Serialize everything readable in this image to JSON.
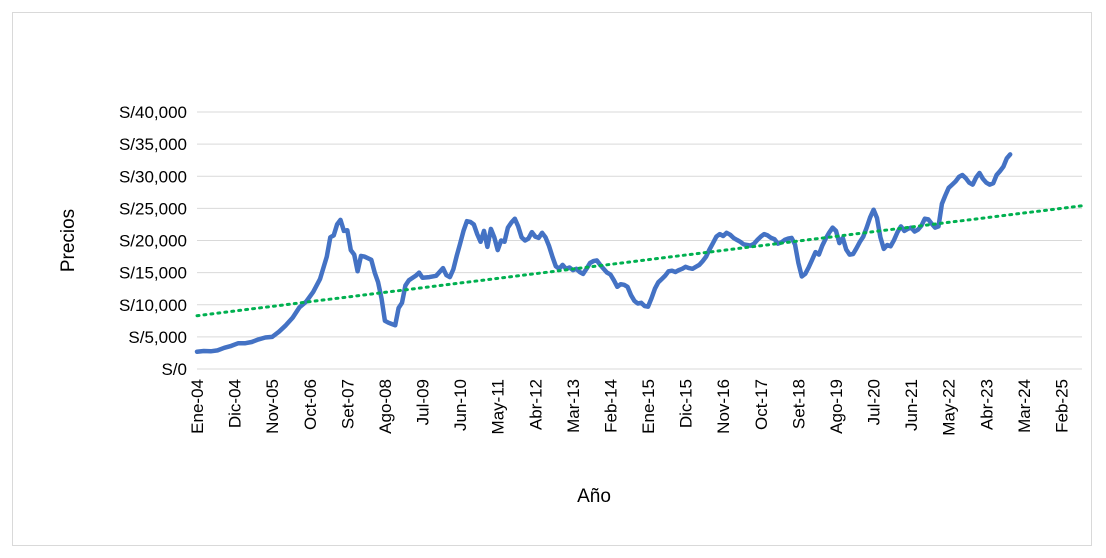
{
  "chart_data": {
    "type": "line",
    "title": "",
    "xlabel": "Año",
    "ylabel": "Precios",
    "ylim": [
      0,
      40000
    ],
    "y_ticks": [
      0,
      5000,
      10000,
      15000,
      20000,
      25000,
      30000,
      35000,
      40000
    ],
    "y_tick_labels": [
      "S/0",
      "S/5,000",
      "S/10,000",
      "S/15,000",
      "S/20,000",
      "S/25,000",
      "S/30,000",
      "S/35,000",
      "S/40,000"
    ],
    "x_tick_labels": [
      "Ene-04",
      "Dic-04",
      "Nov-05",
      "Oct-06",
      "Set-07",
      "Ago-08",
      "Jul-09",
      "Jun-10",
      "May-11",
      "Abr-12",
      "Mar-13",
      "Feb-14",
      "Ene-15",
      "Dic-15",
      "Nov-16",
      "Oct-17",
      "Set-18",
      "Ago-19",
      "Jul-20",
      "Jun-21",
      "May-22",
      "Abr-23",
      "Mar-24",
      "Feb-25"
    ],
    "x_tick_positions_months": [
      0,
      11,
      22,
      33,
      44,
      55,
      66,
      77,
      88,
      99,
      110,
      121,
      132,
      143,
      154,
      165,
      176,
      187,
      198,
      209,
      220,
      231,
      242,
      253
    ],
    "x_range_months": [
      0,
      259
    ],
    "gridlines": "horizontal",
    "legend": "none",
    "series": [
      {
        "kind": "price",
        "color": "#4472C4",
        "points": [
          [
            0,
            2700
          ],
          [
            2,
            2800
          ],
          [
            4,
            2750
          ],
          [
            6,
            2900
          ],
          [
            8,
            3300
          ],
          [
            10,
            3600
          ],
          [
            12,
            4000
          ],
          [
            14,
            4000
          ],
          [
            16,
            4200
          ],
          [
            18,
            4600
          ],
          [
            20,
            4900
          ],
          [
            22,
            5000
          ],
          [
            24,
            5800
          ],
          [
            26,
            6800
          ],
          [
            28,
            8000
          ],
          [
            30,
            9600
          ],
          [
            32,
            10500
          ],
          [
            34,
            12000
          ],
          [
            36,
            14000
          ],
          [
            38,
            17500
          ],
          [
            39,
            20500
          ],
          [
            40,
            20800
          ],
          [
            41,
            22500
          ],
          [
            42,
            23200
          ],
          [
            43,
            21500
          ],
          [
            44,
            21600
          ],
          [
            45,
            18500
          ],
          [
            46,
            17800
          ],
          [
            47,
            15200
          ],
          [
            48,
            17600
          ],
          [
            49,
            17500
          ],
          [
            51,
            17000
          ],
          [
            52,
            15000
          ],
          [
            53,
            13500
          ],
          [
            54,
            11000
          ],
          [
            55,
            7500
          ],
          [
            56,
            7200
          ],
          [
            57,
            7000
          ],
          [
            58,
            6800
          ],
          [
            59,
            9500
          ],
          [
            60,
            10300
          ],
          [
            61,
            13000
          ],
          [
            62,
            13800
          ],
          [
            64,
            14500
          ],
          [
            65,
            15000
          ],
          [
            66,
            14200
          ],
          [
            68,
            14300
          ],
          [
            70,
            14500
          ],
          [
            72,
            15700
          ],
          [
            73,
            14600
          ],
          [
            74,
            14300
          ],
          [
            75,
            15500
          ],
          [
            76,
            17600
          ],
          [
            77,
            19500
          ],
          [
            78,
            21500
          ],
          [
            79,
            23000
          ],
          [
            80,
            22900
          ],
          [
            81,
            22500
          ],
          [
            82,
            21000
          ],
          [
            83,
            19800
          ],
          [
            84,
            21500
          ],
          [
            85,
            19000
          ],
          [
            86,
            21800
          ],
          [
            87,
            20500
          ],
          [
            88,
            18500
          ],
          [
            89,
            20000
          ],
          [
            90,
            19800
          ],
          [
            91,
            22000
          ],
          [
            92,
            22800
          ],
          [
            93,
            23400
          ],
          [
            94,
            22200
          ],
          [
            95,
            20500
          ],
          [
            96,
            20000
          ],
          [
            97,
            20300
          ],
          [
            98,
            21300
          ],
          [
            99,
            20600
          ],
          [
            100,
            20400
          ],
          [
            101,
            21200
          ],
          [
            102,
            20500
          ],
          [
            103,
            19200
          ],
          [
            104,
            17500
          ],
          [
            105,
            16000
          ],
          [
            106,
            15600
          ],
          [
            107,
            16200
          ],
          [
            108,
            15600
          ],
          [
            109,
            15800
          ],
          [
            110,
            15400
          ],
          [
            111,
            15600
          ],
          [
            112,
            15100
          ],
          [
            113,
            14800
          ],
          [
            114,
            15600
          ],
          [
            115,
            16500
          ],
          [
            116,
            16800
          ],
          [
            117,
            16900
          ],
          [
            118,
            16200
          ],
          [
            119,
            15600
          ],
          [
            120,
            15000
          ],
          [
            121,
            14700
          ],
          [
            122,
            13800
          ],
          [
            123,
            12800
          ],
          [
            124,
            13200
          ],
          [
            125,
            13100
          ],
          [
            126,
            12800
          ],
          [
            127,
            11500
          ],
          [
            128,
            10600
          ],
          [
            129,
            10200
          ],
          [
            130,
            10300
          ],
          [
            131,
            9800
          ],
          [
            132,
            9700
          ],
          [
            133,
            11000
          ],
          [
            134,
            12500
          ],
          [
            135,
            13500
          ],
          [
            136,
            14000
          ],
          [
            137,
            14500
          ],
          [
            138,
            15200
          ],
          [
            139,
            15300
          ],
          [
            140,
            15100
          ],
          [
            141,
            15400
          ],
          [
            142,
            15600
          ],
          [
            143,
            15900
          ],
          [
            144,
            15700
          ],
          [
            145,
            15600
          ],
          [
            146,
            15900
          ],
          [
            147,
            16200
          ],
          [
            148,
            16800
          ],
          [
            149,
            17500
          ],
          [
            150,
            18600
          ],
          [
            151,
            19600
          ],
          [
            152,
            20600
          ],
          [
            153,
            21000
          ],
          [
            154,
            20700
          ],
          [
            155,
            21200
          ],
          [
            156,
            20900
          ],
          [
            157,
            20400
          ],
          [
            158,
            20100
          ],
          [
            159,
            19800
          ],
          [
            160,
            19400
          ],
          [
            161,
            19300
          ],
          [
            162,
            19200
          ],
          [
            163,
            19500
          ],
          [
            164,
            20100
          ],
          [
            165,
            20600
          ],
          [
            166,
            21000
          ],
          [
            167,
            20800
          ],
          [
            168,
            20400
          ],
          [
            169,
            20200
          ],
          [
            170,
            19500
          ],
          [
            171,
            19700
          ],
          [
            172,
            20100
          ],
          [
            173,
            20300
          ],
          [
            174,
            20400
          ],
          [
            175,
            19400
          ],
          [
            176,
            16500
          ],
          [
            177,
            14400
          ],
          [
            178,
            14800
          ],
          [
            179,
            15800
          ],
          [
            180,
            17000
          ],
          [
            181,
            18200
          ],
          [
            182,
            17800
          ],
          [
            183,
            19200
          ],
          [
            184,
            20300
          ],
          [
            185,
            21200
          ],
          [
            186,
            22000
          ],
          [
            187,
            21500
          ],
          [
            188,
            19600
          ],
          [
            189,
            20400
          ],
          [
            190,
            18600
          ],
          [
            191,
            17800
          ],
          [
            192,
            17900
          ],
          [
            193,
            18800
          ],
          [
            194,
            19800
          ],
          [
            195,
            20600
          ],
          [
            196,
            22000
          ],
          [
            197,
            23600
          ],
          [
            198,
            24800
          ],
          [
            199,
            23500
          ],
          [
            200,
            20500
          ],
          [
            201,
            18700
          ],
          [
            202,
            19300
          ],
          [
            203,
            19100
          ],
          [
            204,
            20100
          ],
          [
            205,
            21300
          ],
          [
            206,
            22200
          ],
          [
            207,
            21500
          ],
          [
            208,
            21800
          ],
          [
            209,
            22000
          ],
          [
            210,
            21400
          ],
          [
            211,
            21700
          ],
          [
            212,
            22300
          ],
          [
            213,
            23400
          ],
          [
            214,
            23300
          ],
          [
            215,
            22600
          ],
          [
            216,
            22000
          ],
          [
            217,
            22200
          ],
          [
            218,
            25700
          ],
          [
            219,
            27000
          ],
          [
            220,
            28200
          ],
          [
            221,
            28700
          ],
          [
            222,
            29200
          ],
          [
            223,
            29900
          ],
          [
            224,
            30200
          ],
          [
            225,
            29700
          ],
          [
            226,
            29000
          ],
          [
            227,
            28700
          ],
          [
            228,
            29800
          ],
          [
            229,
            30500
          ],
          [
            230,
            29600
          ],
          [
            231,
            29000
          ],
          [
            232,
            28700
          ],
          [
            233,
            28900
          ],
          [
            234,
            30200
          ],
          [
            235,
            30800
          ],
          [
            236,
            31500
          ],
          [
            237,
            32800
          ],
          [
            238,
            33400
          ]
        ]
      },
      {
        "kind": "trend",
        "color": "#00B050",
        "points": [
          [
            0,
            8300
          ],
          [
            259,
            25400
          ]
        ]
      }
    ]
  }
}
